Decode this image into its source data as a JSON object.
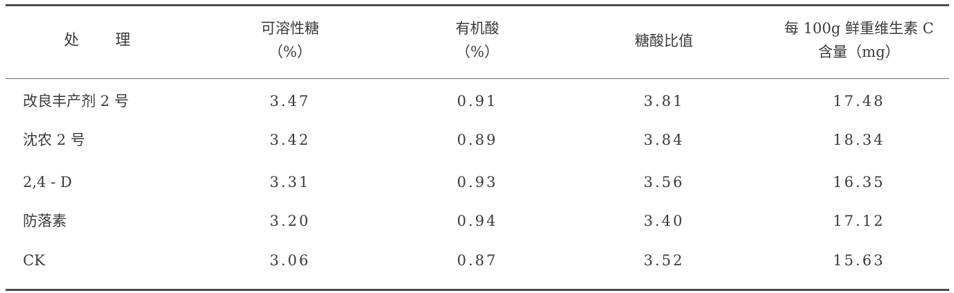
{
  "table": {
    "headers": [
      {
        "lines": [
          "处",
          "理"
        ]
      },
      {
        "lines": [
          "可溶性糖",
          "（%）"
        ]
      },
      {
        "lines": [
          "有机酸",
          "（%）"
        ]
      },
      {
        "lines": [
          "糖酸比值"
        ]
      },
      {
        "lines": [
          "每 100g 鲜重维生素 C",
          "含量（mg）"
        ]
      }
    ],
    "rows": [
      {
        "treatment": "改良丰产剂 2 号",
        "sugar": "3.47",
        "acid": "0.91",
        "ratio": "3.81",
        "vitc": "17.48"
      },
      {
        "treatment": "沈农 2 号",
        "sugar": "3.42",
        "acid": "0.89",
        "ratio": "3.84",
        "vitc": "18.34"
      },
      {
        "treatment": "2,4 - D",
        "sugar": "3.31",
        "acid": "0.93",
        "ratio": "3.56",
        "vitc": "16.35"
      },
      {
        "treatment": "防落素",
        "sugar": "3.20",
        "acid": "0.94",
        "ratio": "3.40",
        "vitc": "17.12"
      },
      {
        "treatment": "CK",
        "sugar": "3.06",
        "acid": "0.87",
        "ratio": "3.52",
        "vitc": "15.63"
      }
    ]
  }
}
